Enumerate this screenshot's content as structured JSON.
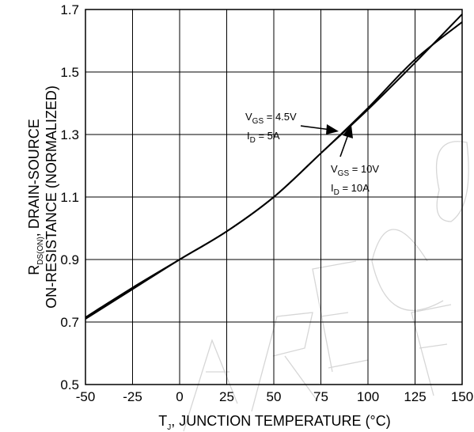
{
  "chart_data": {
    "type": "line",
    "xlabel_main": "T",
    "xlabel_sub": "J",
    "xlabel_rest": ", JUNCTION TEMPERATURE (°C)",
    "ylabel_line1_main": "R",
    "ylabel_line1_sub": "DS(ON)",
    "ylabel_line1_rest": ", DRAIN-SOURCE",
    "ylabel_line2": "ON-RESISTANCE (NORMALIZED)",
    "xlim": [
      -50,
      150
    ],
    "ylim": [
      0.5,
      1.7
    ],
    "xticks": [
      "-50",
      "-25",
      "0",
      "25",
      "50",
      "75",
      "100",
      "125",
      "150"
    ],
    "yticks": [
      "0.5",
      "0.7",
      "0.9",
      "1.1",
      "1.3",
      "1.5",
      "1.7"
    ],
    "grid": true,
    "series": [
      {
        "x": [
          -50,
          -25,
          0,
          25,
          50,
          75,
          100,
          125,
          150
        ],
        "y": [
          0.715,
          0.81,
          0.9,
          0.99,
          1.1,
          1.24,
          1.385,
          1.54,
          1.66
        ]
      },
      {
        "x": [
          -50,
          -25,
          0,
          25,
          50,
          75,
          100,
          125,
          150
        ],
        "y": [
          0.71,
          0.805,
          0.9,
          0.99,
          1.1,
          1.24,
          1.38,
          1.53,
          1.685
        ]
      }
    ],
    "annotations": [
      {
        "main": "V",
        "sub": "GS",
        "rest": " = 4.5V"
      },
      {
        "main": "I",
        "sub": "D",
        "rest": " = 5A"
      },
      {
        "main": "V",
        "sub": "GS",
        "rest": " = 10V"
      },
      {
        "main": "I",
        "sub": "D",
        "rest": " = 10A"
      }
    ]
  }
}
